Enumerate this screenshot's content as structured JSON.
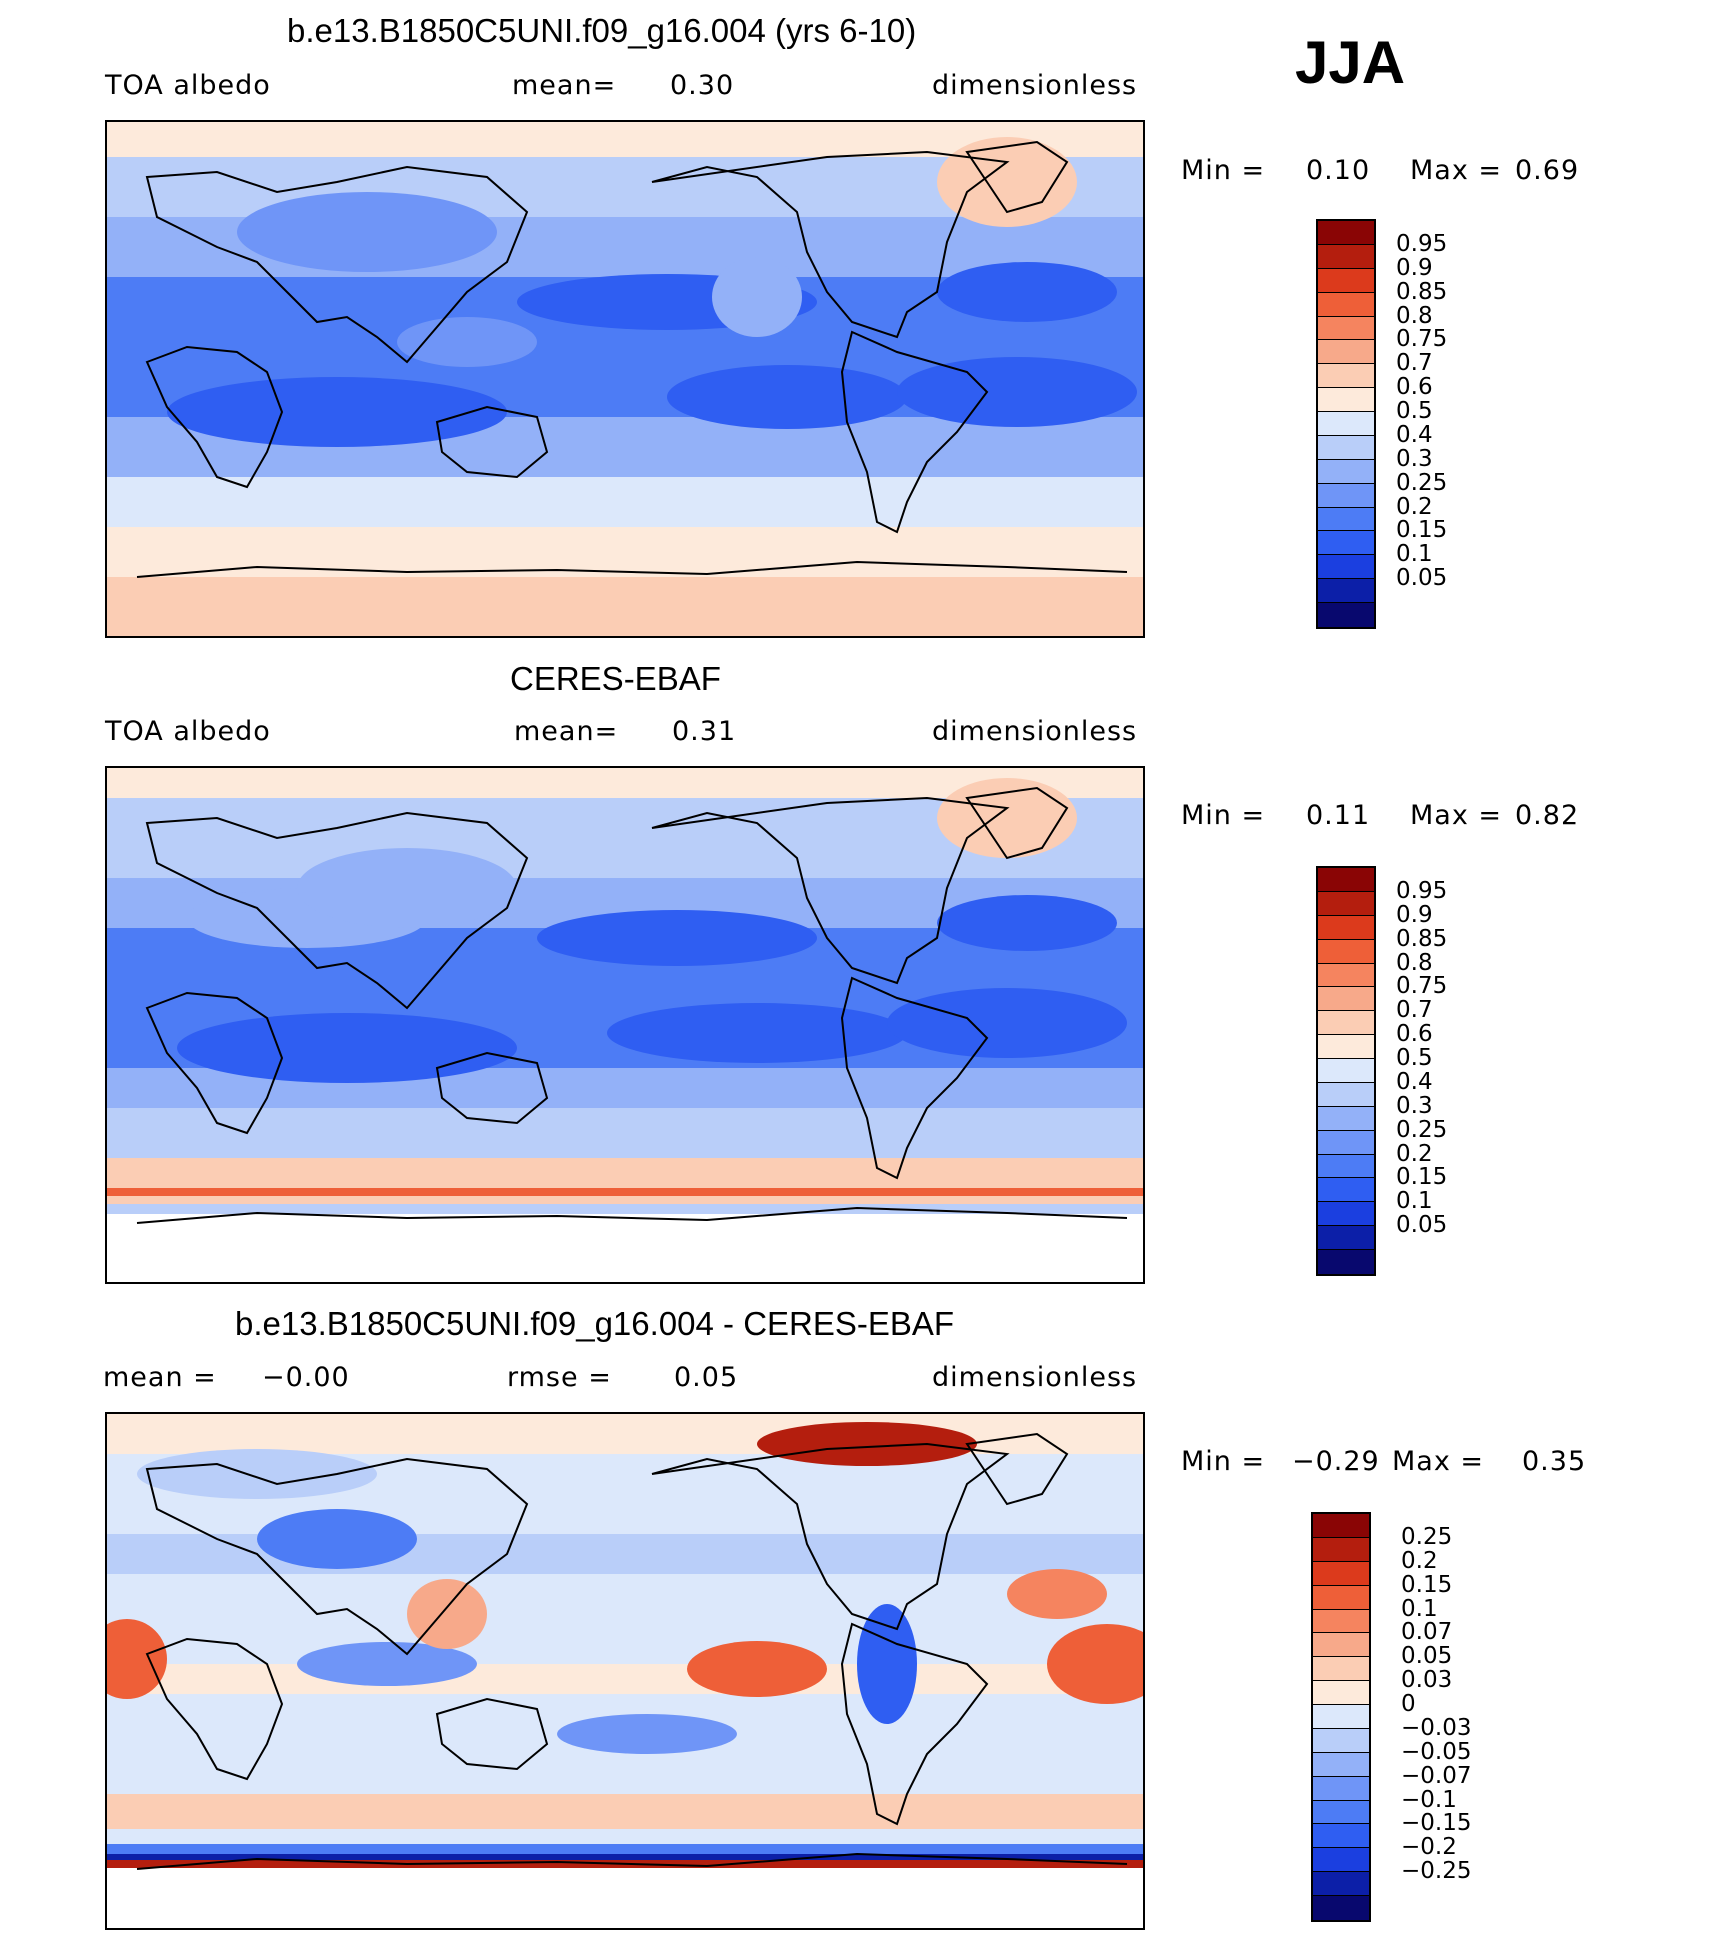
{
  "season": "JJA",
  "palette_pos": [
    "#08086e",
    "#0c1fa8",
    "#1b3fe0",
    "#2f5ef2",
    "#4d7cf5",
    "#6f95f7",
    "#93b1f8",
    "#b9cef9",
    "#dce8fb",
    "#fdeadb",
    "#fbcdb4",
    "#f7a98a",
    "#f5845f",
    "#ee5f38",
    "#dc3a1c",
    "#b41e0e",
    "#8a0505"
  ],
  "palette_diff": [
    "#08086e",
    "#0c1fa8",
    "#1b3fe0",
    "#2f5ef2",
    "#4d7cf5",
    "#6f95f7",
    "#93b1f8",
    "#b9cef9",
    "#dce8fb",
    "#fdeadb",
    "#fbcdb4",
    "#f7a98a",
    "#f5845f",
    "#ee5f38",
    "#dc3a1c",
    "#b41e0e",
    "#8a0505"
  ],
  "chart_data": [
    {
      "type": "heatmap",
      "title": "b.e13.B1850C5UNI.f09_g16.004 (yrs 6-10)",
      "variable": "TOA  albedo",
      "mean_label": "mean=",
      "mean_value": "0.30",
      "units": "dimensionless",
      "min_label": "Min =",
      "min_value": "0.10",
      "max_label": "Max =",
      "max_value": "0.69",
      "colorbar_levels": [
        "0.95",
        "0.9",
        "0.85",
        "0.8",
        "0.75",
        "0.7",
        "0.6",
        "0.5",
        "0.4",
        "0.3",
        "0.25",
        "0.2",
        "0.15",
        "0.1",
        "0.05"
      ]
    },
    {
      "type": "heatmap",
      "title": "CERES-EBAF",
      "variable": "TOA  albedo",
      "mean_label": "mean=",
      "mean_value": "0.31",
      "units": "dimensionless",
      "min_label": "Min =",
      "min_value": "0.11",
      "max_label": "Max =",
      "max_value": "0.82",
      "colorbar_levels": [
        "0.95",
        "0.9",
        "0.85",
        "0.8",
        "0.75",
        "0.7",
        "0.6",
        "0.5",
        "0.4",
        "0.3",
        "0.25",
        "0.2",
        "0.15",
        "0.1",
        "0.05"
      ]
    },
    {
      "type": "heatmap",
      "title": "b.e13.B1850C5UNI.f09_g16.004 - CERES-EBAF",
      "mean_label": "mean =",
      "mean_value": "−0.00",
      "rmse_label": "rmse =",
      "rmse_value": "0.05",
      "units": "dimensionless",
      "min_label": "Min =",
      "min_value": "−0.29",
      "max_label": "Max =",
      "max_value": "0.35",
      "colorbar_levels": [
        "0.25",
        "0.2",
        "0.15",
        "0.1",
        "0.07",
        "0.05",
        "0.03",
        "0",
        "−0.03",
        "−0.05",
        "−0.07",
        "−0.1",
        "−0.15",
        "−0.2",
        "−0.25"
      ]
    }
  ]
}
